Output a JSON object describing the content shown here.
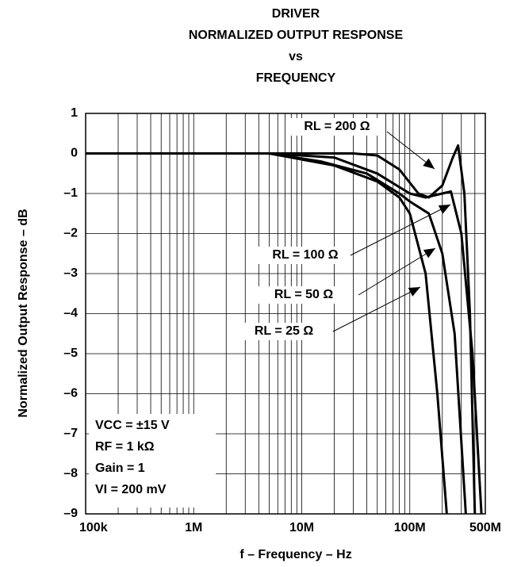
{
  "chart_data": {
    "type": "line",
    "title": [
      "DRIVER",
      "NORMALIZED OUTPUT RESPONSE",
      "vs",
      "FREQUENCY"
    ],
    "x_label": "f – Frequency – Hz",
    "y_label": "Normalized Output Response – dB",
    "xscale": "log",
    "xlim": [
      100000,
      500000000
    ],
    "xticks": [
      {
        "value": 100000,
        "label": "100k"
      },
      {
        "value": 1000000,
        "label": "1M"
      },
      {
        "value": 10000000,
        "label": "10M"
      },
      {
        "value": 100000000,
        "label": "100M"
      },
      {
        "value": 500000000,
        "label": "500M"
      }
    ],
    "ylim": [
      -9,
      1
    ],
    "yticks": [
      {
        "value": -9,
        "label": "–9"
      },
      {
        "value": -8,
        "label": "–8"
      },
      {
        "value": -7,
        "label": "–7"
      },
      {
        "value": -6,
        "label": "–6"
      },
      {
        "value": -5,
        "label": "–5"
      },
      {
        "value": -4,
        "label": "–4"
      },
      {
        "value": -3,
        "label": "–3"
      },
      {
        "value": -2,
        "label": "–2"
      },
      {
        "value": -1,
        "label": "–1"
      },
      0,
      1
    ],
    "grid": true,
    "series": [
      {
        "name": "RL = 200 Ω",
        "color": "#000000",
        "x": [
          100000,
          1000000,
          10000000,
          30000000,
          50000000,
          80000000,
          120000000,
          150000000,
          200000000,
          250000000,
          280000000,
          320000000,
          360000000,
          400000000
        ],
        "values": [
          0,
          0,
          0,
          0,
          -0.05,
          -0.4,
          -1.0,
          -1.1,
          -0.8,
          -0.1,
          0.2,
          -1,
          -4,
          -9
        ]
      },
      {
        "name": "RL = 100 Ω",
        "color": "#000000",
        "x": [
          100000,
          1000000,
          5000000,
          20000000,
          50000000,
          100000000,
          140000000,
          200000000,
          240000000,
          300000000,
          380000000,
          460000000
        ],
        "values": [
          0,
          0,
          0,
          -0.1,
          -0.5,
          -1.0,
          -1.1,
          -1.0,
          -0.95,
          -2,
          -5,
          -9
        ]
      },
      {
        "name": "RL = 50 Ω",
        "color": "#000000",
        "x": [
          100000,
          1000000,
          5000000,
          15000000,
          40000000,
          80000000,
          100000000,
          150000000,
          200000000,
          260000000,
          330000000
        ],
        "values": [
          0,
          0,
          0,
          -0.2,
          -0.5,
          -1.0,
          -1.2,
          -1.5,
          -2.5,
          -4.5,
          -9
        ]
      },
      {
        "name": "RL = 25 Ω",
        "color": "#000000",
        "x": [
          100000,
          1000000,
          5000000,
          20000000,
          50000000,
          80000000,
          100000000,
          140000000,
          180000000,
          220000000
        ],
        "values": [
          0,
          0,
          0,
          -0.3,
          -0.7,
          -1.1,
          -1.5,
          -3,
          -6,
          -9
        ]
      }
    ],
    "annotations": [
      "VCC = ±15 V",
      "RF = 1 kΩ",
      "Gain = 1",
      "VI = 200 mV"
    ]
  }
}
